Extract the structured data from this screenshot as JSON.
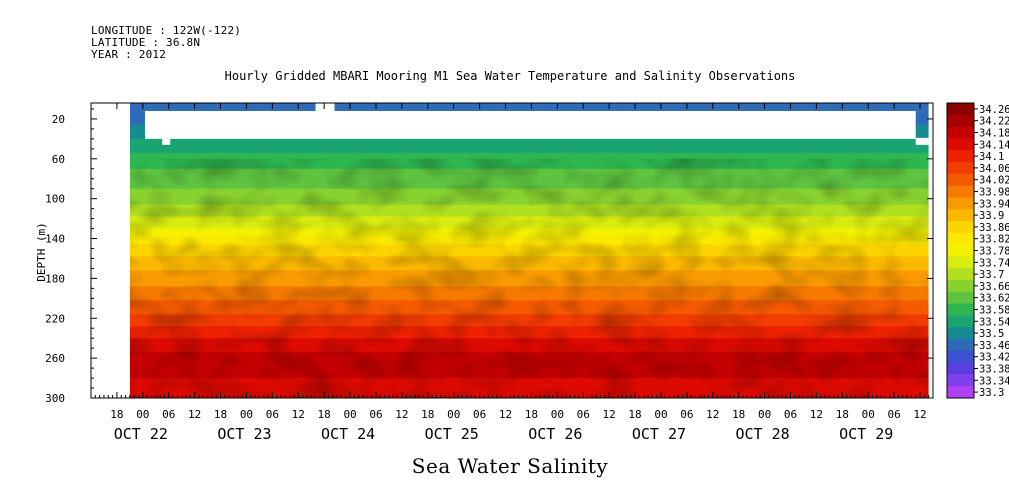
{
  "header": {
    "longitude": "LONGITUDE : 122W(-122)",
    "latitude": "LATITUDE : 36.8N",
    "year": "YEAR : 2012"
  },
  "chart_data": {
    "type": "heatmap",
    "title": "Hourly Gridded MBARI Mooring M1 Sea Water Temperature and Salinity Observations",
    "xlabel": "Sea Water Salinity",
    "ylabel": "DEPTH (m)",
    "ylim": [
      300,
      4
    ],
    "y_reversed": true,
    "y_ticks": [
      20,
      60,
      100,
      140,
      180,
      220,
      260,
      300
    ],
    "x_hour_ticks": [
      "18",
      "00",
      "06",
      "12",
      "18",
      "00",
      "06",
      "12",
      "18",
      "00",
      "06",
      "12",
      "18",
      "00",
      "06",
      "12",
      "18",
      "00",
      "06",
      "12",
      "18",
      "00",
      "06",
      "12",
      "18",
      "00",
      "06",
      "12",
      "18",
      "00",
      "06",
      "12"
    ],
    "x_date_labels": [
      "OCT 22",
      "OCT 23",
      "OCT 24",
      "OCT 25",
      "OCT 26",
      "OCT 27",
      "OCT 28",
      "OCT 29"
    ],
    "x_range_hours": [
      12,
      207
    ],
    "data_start_hour": 21,
    "data_end_hour": 206,
    "missing_band_depth": [
      12,
      40
    ],
    "colorbar_levels": [
      "34.26",
      "34.22",
      "34.18",
      "34.14",
      "34.1",
      "34.06",
      "34.02",
      "33.98",
      "33.94",
      "33.9",
      "33.86",
      "33.82",
      "33.78",
      "33.74",
      "33.7",
      "33.66",
      "33.62",
      "33.58",
      "33.54",
      "33.5",
      "33.46",
      "33.42",
      "33.38",
      "33.34",
      "33.3"
    ],
    "colorbar_colors": [
      "#8a0000",
      "#a80000",
      "#c40000",
      "#dc0a00",
      "#ee2200",
      "#f23c00",
      "#f55a00",
      "#f77a00",
      "#f99a00",
      "#fbb800",
      "#fcd400",
      "#fbe800",
      "#f4f000",
      "#d8ec10",
      "#b2e020",
      "#88d230",
      "#5ec440",
      "#2eb650",
      "#1aa472",
      "#168c92",
      "#2e6cb8",
      "#3c50d0",
      "#5a3ee0",
      "#8240ec",
      "#b040f4"
    ],
    "profile": [
      {
        "depth": 4,
        "salinity": 33.46
      },
      {
        "depth": 12,
        "salinity": 33.46
      },
      {
        "depth": 40,
        "salinity": 33.54
      },
      {
        "depth": 60,
        "salinity": 33.6
      },
      {
        "depth": 100,
        "salinity": 33.68
      },
      {
        "depth": 130,
        "salinity": 33.78
      },
      {
        "depth": 150,
        "salinity": 33.88
      },
      {
        "depth": 180,
        "salinity": 33.96
      },
      {
        "depth": 210,
        "salinity": 34.04
      },
      {
        "depth": 240,
        "salinity": 34.14
      },
      {
        "depth": 260,
        "salinity": 34.2
      },
      {
        "depth": 280,
        "salinity": 34.18
      },
      {
        "depth": 300,
        "salinity": 34.16
      }
    ]
  }
}
